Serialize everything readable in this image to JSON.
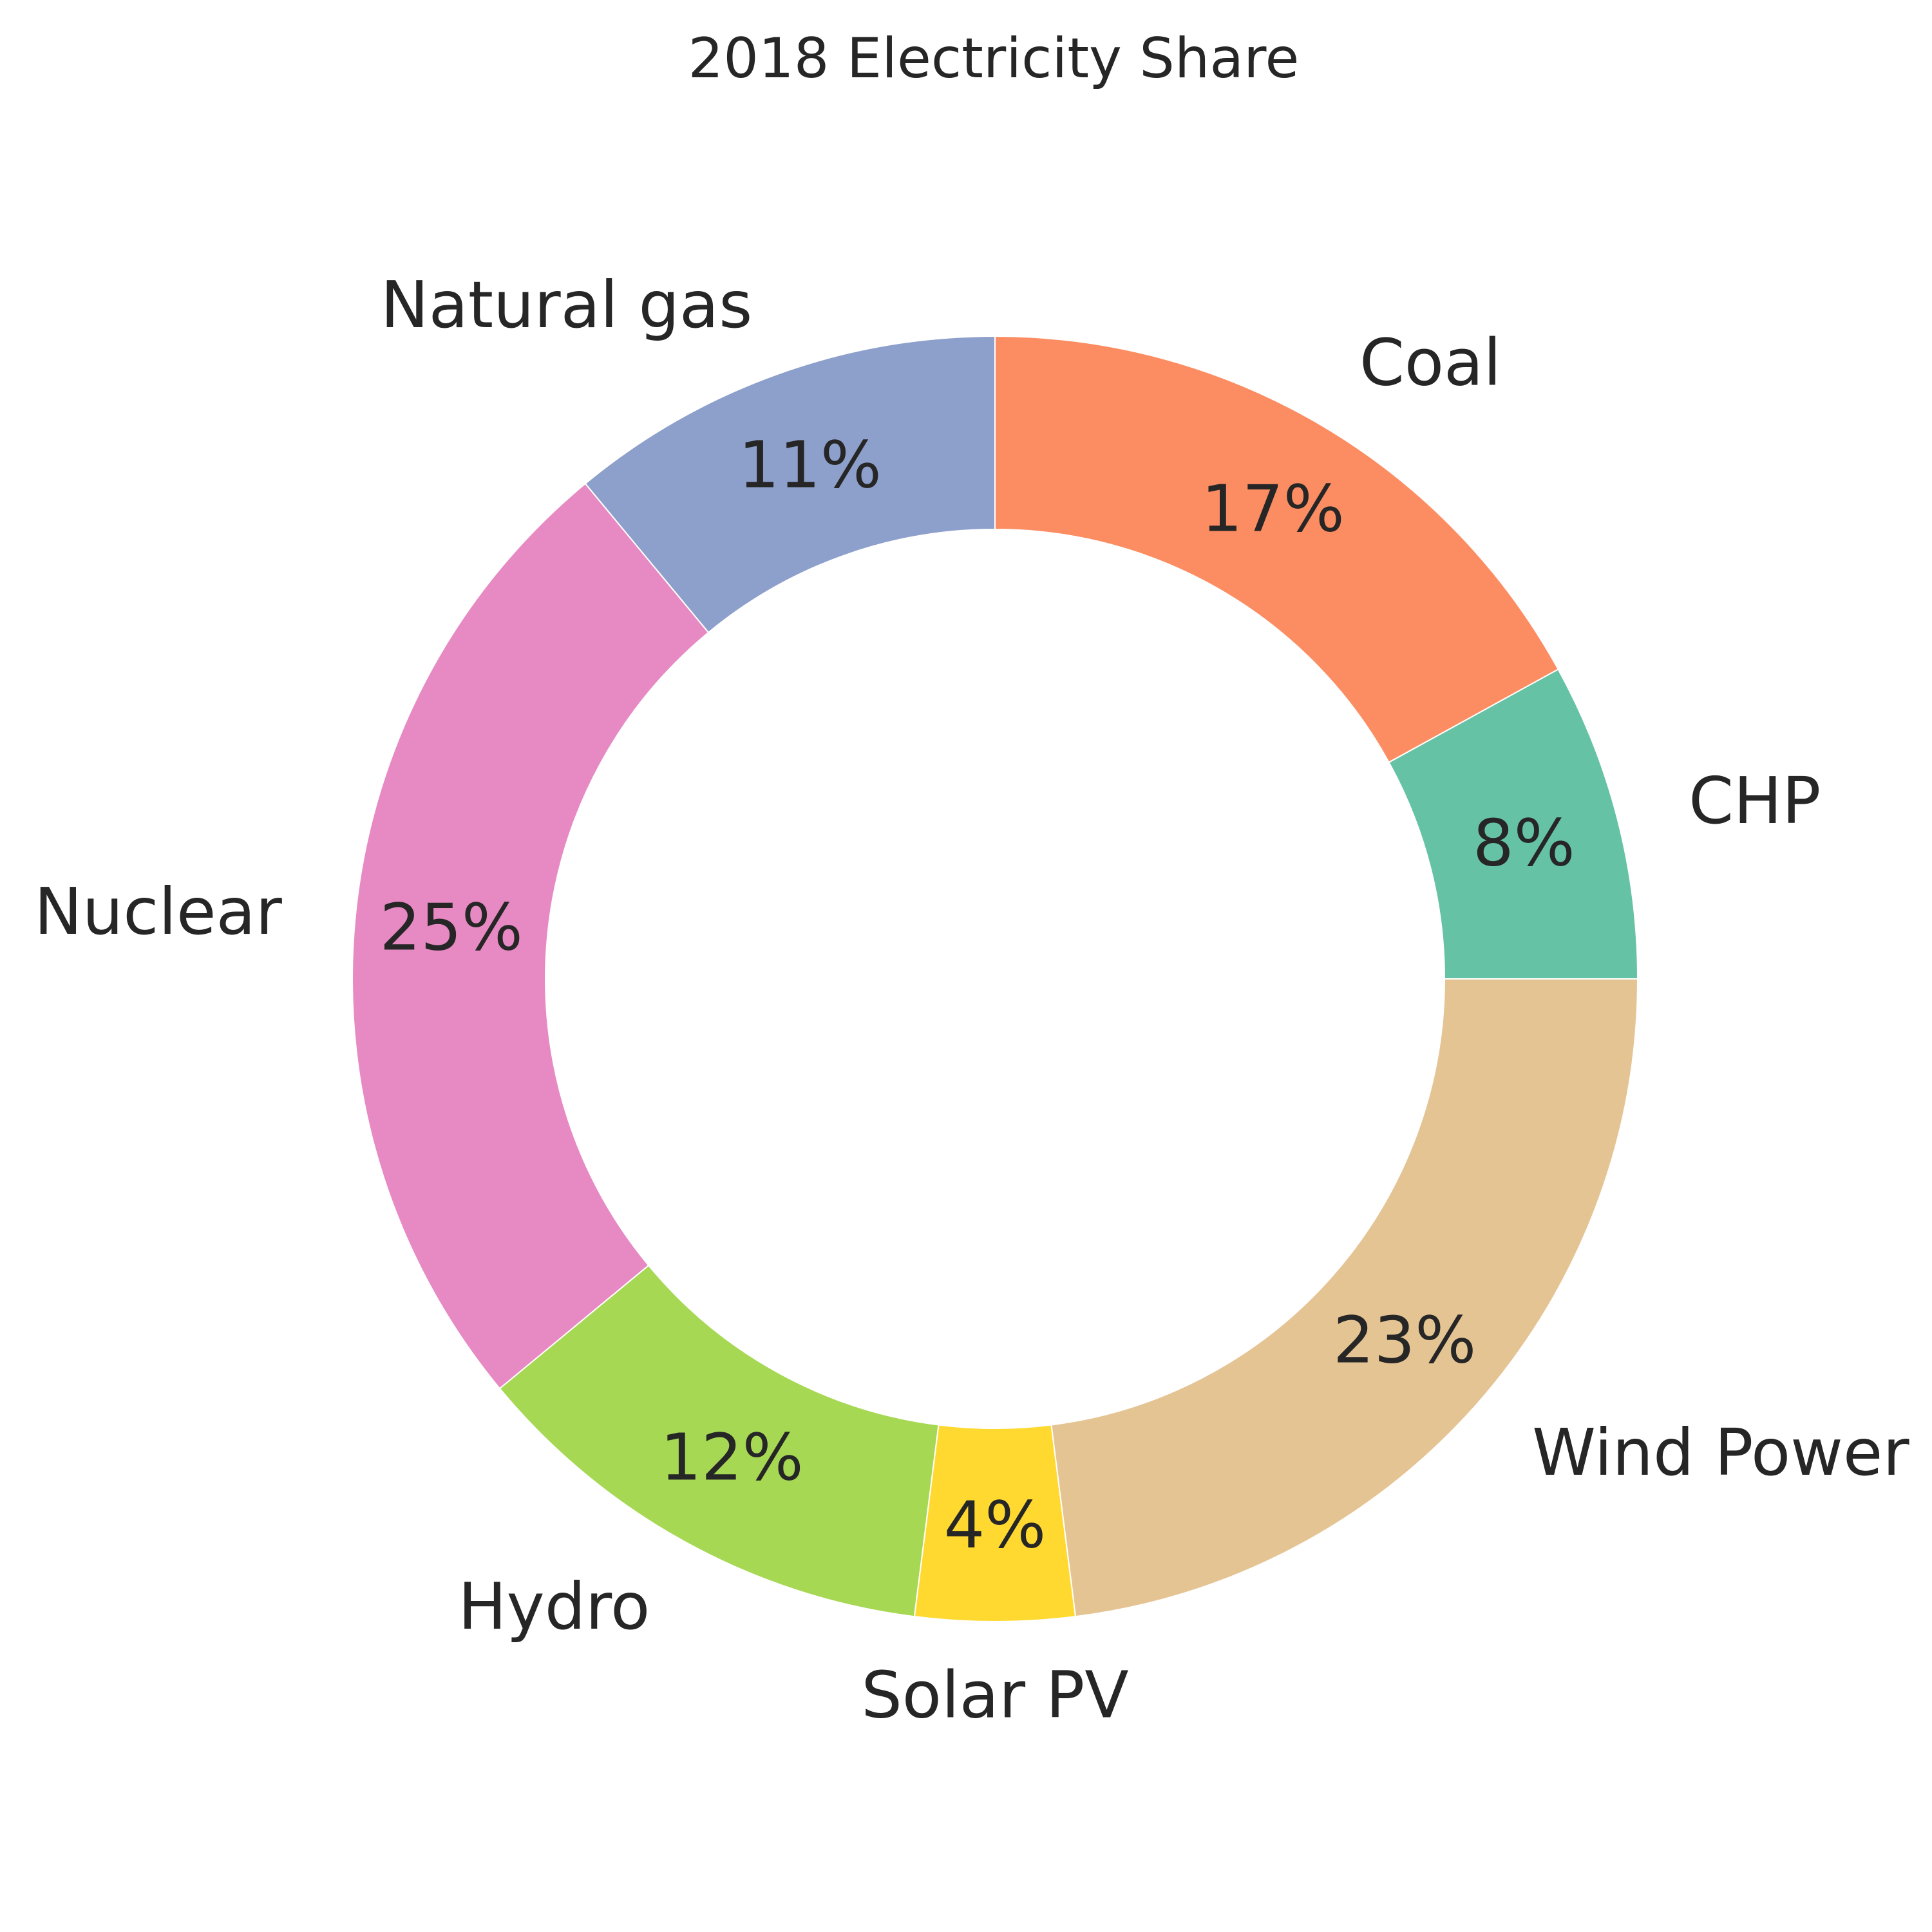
{
  "chart_data": {
    "type": "pie",
    "style": "donut",
    "title": "2018 Electricity Share",
    "categories": [
      "CHP",
      "Coal",
      "Natural gas",
      "Nuclear",
      "Hydro",
      "Solar PV",
      "Wind Power"
    ],
    "values": [
      8,
      17,
      11,
      25,
      12,
      4,
      23
    ],
    "percent_labels": [
      "8%",
      "17%",
      "11%",
      "25%",
      "12%",
      "4%",
      "23%"
    ],
    "colors": [
      "#66c2a5",
      "#fc8d62",
      "#8da0cb",
      "#e78ac3",
      "#a6d854",
      "#ffd92f",
      "#e5c494"
    ],
    "start_angle_deg": 0,
    "direction": "counterclockwise",
    "legend": "none",
    "grid": false
  }
}
